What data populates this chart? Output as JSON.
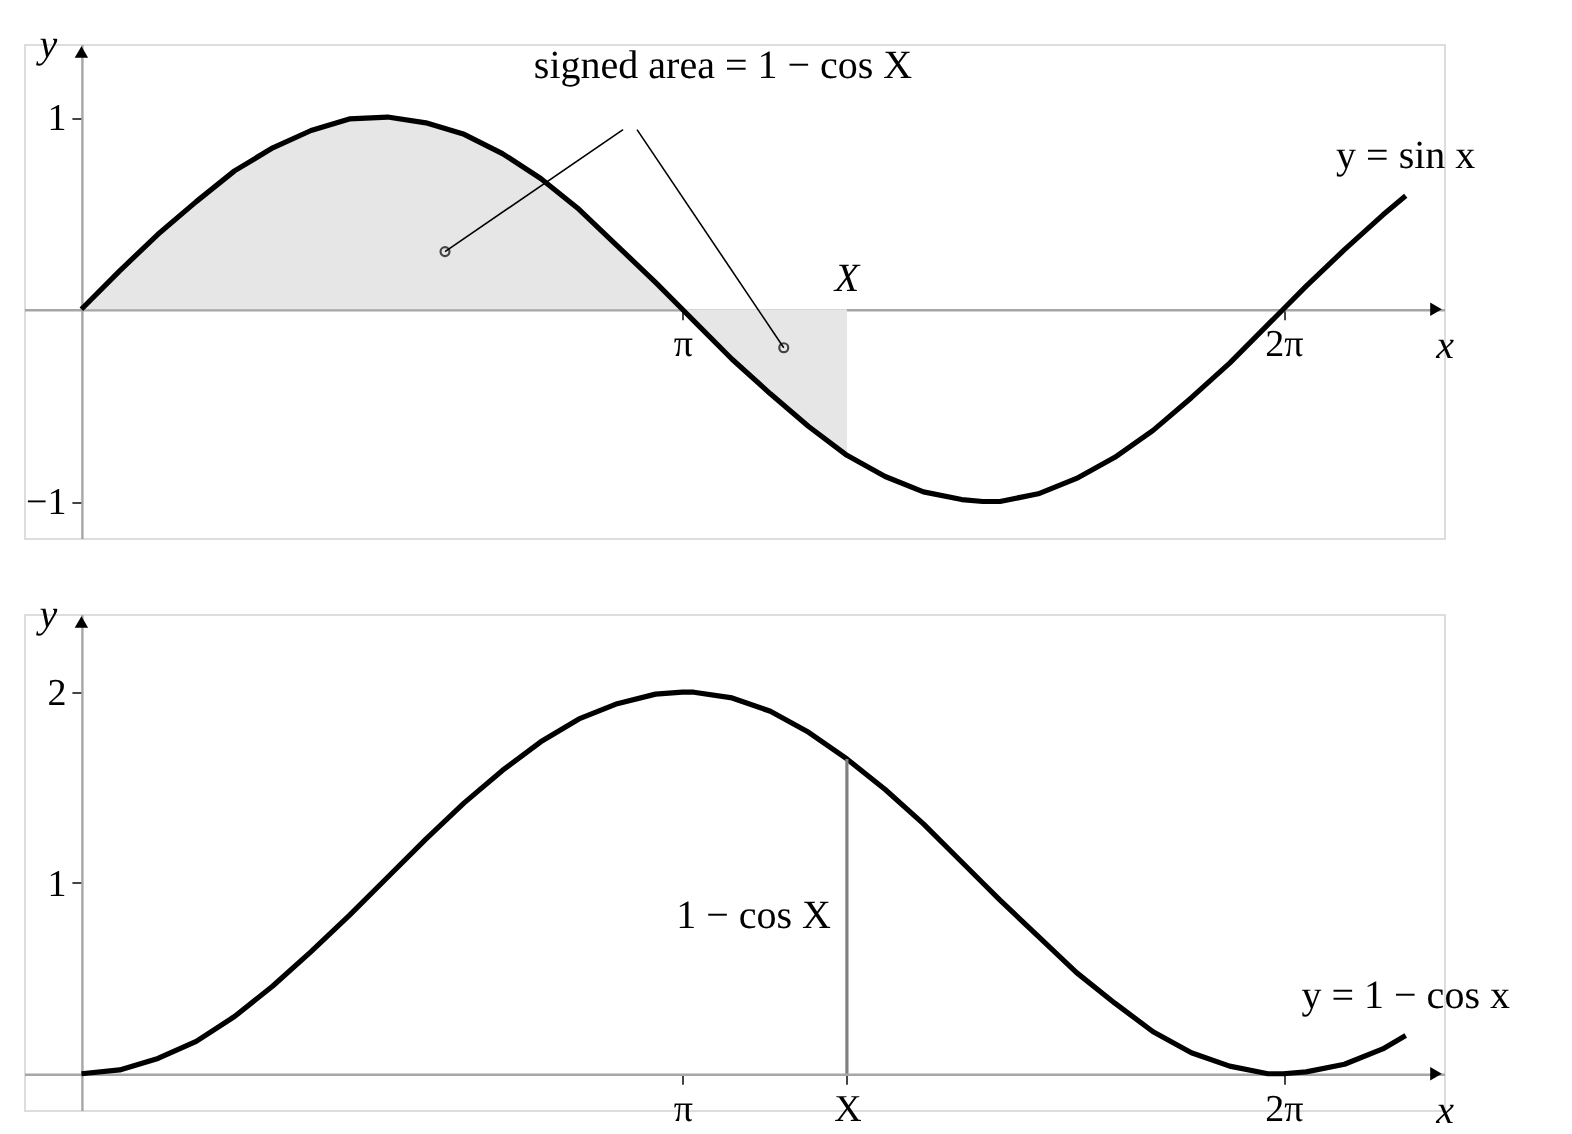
{
  "chart_data": [
    {
      "type": "line",
      "xlabel": "x",
      "ylabel": "y",
      "xlim": [
        -0.3,
        7.12
      ],
      "ylim": [
        -1.19,
        1.38
      ],
      "xticks": [
        {
          "value": 3.14,
          "label": "π"
        },
        {
          "value": 6.28,
          "label": "2π"
        }
      ],
      "yticks": [
        {
          "value": -1,
          "label": "−1"
        },
        1
      ],
      "x": [
        0,
        0.2,
        0.4,
        0.6,
        0.8,
        1.0,
        1.2,
        1.4,
        1.6,
        1.8,
        2.0,
        2.2,
        2.4,
        2.6,
        2.8,
        3.0,
        3.14,
        3.2,
        3.4,
        3.6,
        3.8,
        4.0,
        4.2,
        4.4,
        4.6,
        4.71,
        4.8,
        5.0,
        5.2,
        5.4,
        5.6,
        5.8,
        6.0,
        6.2,
        6.28,
        6.4,
        6.6,
        6.8,
        6.92
      ],
      "series": [
        {
          "type": "area",
          "color": "#e6e6e6",
          "x": [
            0,
            0.2,
            0.4,
            0.6,
            0.8,
            1.0,
            1.2,
            1.4,
            1.6,
            1.8,
            2.0,
            2.2,
            2.4,
            2.6,
            2.8,
            3.0,
            3.14,
            3.2,
            3.4,
            3.6,
            3.8,
            4.0
          ],
          "values": [
            0,
            0.2,
            0.39,
            0.56,
            0.72,
            0.84,
            0.93,
            0.99,
            1.0,
            0.97,
            0.91,
            0.81,
            0.68,
            0.52,
            0.33,
            0.14,
            0.0,
            -0.06,
            -0.26,
            -0.44,
            -0.61,
            -0.76
          ]
        },
        {
          "name": "y = sin x",
          "color": "#000000",
          "values": [
            0,
            0.2,
            0.39,
            0.56,
            0.72,
            0.84,
            0.93,
            0.99,
            1.0,
            0.97,
            0.91,
            0.81,
            0.68,
            0.52,
            0.33,
            0.14,
            0.0,
            -0.06,
            -0.26,
            -0.44,
            -0.61,
            -0.76,
            -0.87,
            -0.95,
            -0.99,
            -1.0,
            -1.0,
            -0.96,
            -0.88,
            -0.77,
            -0.63,
            -0.46,
            -0.28,
            -0.08,
            0.0,
            0.12,
            0.31,
            0.49,
            0.59
          ]
        },
        {
          "type": "scatter",
          "color": "#000000",
          "x": [
            1.9,
            3.67
          ],
          "values": [
            0.3,
            -0.2
          ]
        }
      ],
      "annotations": [
        {
          "text": "signed area = 1 − cos X",
          "x": 1.9,
          "y": 0.3
        },
        "X"
      ]
    },
    {
      "type": "line",
      "xlabel": "x",
      "ylabel": "y",
      "xlim": [
        -0.3,
        7.12
      ],
      "ylim": [
        -0.19,
        2.41
      ],
      "xticks": [
        {
          "value": 3.14,
          "label": "π"
        },
        {
          "value": 4.0,
          "label": "X"
        },
        {
          "value": 6.28,
          "label": "2π"
        }
      ],
      "yticks": [
        1,
        2
      ],
      "x": [
        0,
        0.2,
        0.4,
        0.6,
        0.8,
        1.0,
        1.2,
        1.4,
        1.6,
        1.8,
        2.0,
        2.2,
        2.4,
        2.6,
        2.8,
        3.0,
        3.14,
        3.2,
        3.4,
        3.6,
        3.8,
        4.0,
        4.2,
        4.4,
        4.6,
        4.71,
        4.8,
        5.0,
        5.2,
        5.4,
        5.6,
        5.8,
        6.0,
        6.2,
        6.28,
        6.4,
        6.6,
        6.8,
        6.92
      ],
      "series": [
        {
          "name": "y = 1 − cos x",
          "color": "#000000",
          "values": [
            0,
            0.02,
            0.08,
            0.17,
            0.3,
            0.46,
            0.64,
            0.83,
            1.03,
            1.23,
            1.42,
            1.59,
            1.74,
            1.86,
            1.94,
            1.99,
            2.0,
            2.0,
            1.97,
            1.9,
            1.79,
            1.65,
            1.49,
            1.31,
            1.11,
            1.0,
            0.91,
            0.72,
            0.53,
            0.37,
            0.22,
            0.11,
            0.04,
            0.0,
            0.0,
            0.01,
            0.05,
            0.13,
            0.2
          ]
        },
        {
          "name": "1 − cos X",
          "color": "#808080",
          "x": [
            4.0,
            4.0
          ],
          "values": [
            0,
            1.65
          ]
        }
      ]
    }
  ]
}
